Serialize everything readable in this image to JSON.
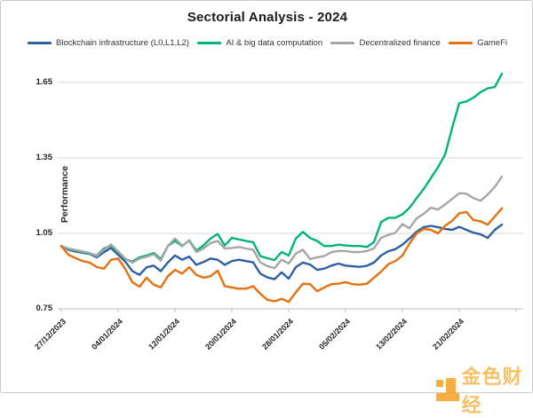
{
  "title": "Sectorial Analysis - 2024",
  "legend": {
    "items": [
      {
        "label": "Blockchain infrastructure (L0,L1,L2)",
        "color": "#2e5fa3"
      },
      {
        "label": "AI & big data computation",
        "color": "#00b377"
      },
      {
        "label": "Decentralized finance",
        "color": "#a6a6a6"
      },
      {
        "label": "GameFi",
        "color": "#e6700e"
      }
    ]
  },
  "y_axis": {
    "label": "Performance"
  },
  "watermark": {
    "text": "金色财经",
    "color": "#f6b64b",
    "logo_color": "#f59f22"
  },
  "chart_data": {
    "type": "line",
    "title": "Sectorial Analysis - 2024",
    "xlabel": "",
    "ylabel": "Performance",
    "ylim": [
      0.75,
      1.65
    ],
    "y_ticks": [
      1.65,
      1.35,
      1.05,
      0.75
    ],
    "x_tick_labels": [
      "27/12/2023",
      "04/01/2024",
      "12/01/2024",
      "20/01/2024",
      "28/01/2024",
      "05/02/2024",
      "13/02/2024",
      "21/02/2024"
    ],
    "x_frequency": "daily, 8 days between labelled ticks",
    "n_points": 63,
    "grid": "horizontal",
    "legend_position": "top",
    "series": [
      {
        "name": "Blockchain infrastructure (L0,L1,L2)",
        "color": "#2e5fa3",
        "values": [
          1.0,
          0.985,
          0.978,
          0.973,
          0.968,
          0.955,
          0.975,
          0.992,
          0.965,
          0.938,
          0.9,
          0.885,
          0.915,
          0.922,
          0.9,
          0.935,
          0.962,
          0.945,
          0.958,
          0.925,
          0.936,
          0.95,
          0.945,
          0.925,
          0.94,
          0.945,
          0.94,
          0.935,
          0.89,
          0.875,
          0.868,
          0.895,
          0.87,
          0.916,
          0.934,
          0.926,
          0.905,
          0.91,
          0.922,
          0.93,
          0.922,
          0.919,
          0.917,
          0.921,
          0.934,
          0.962,
          0.979,
          0.987,
          1.005,
          1.03,
          1.057,
          1.075,
          1.08,
          1.075,
          1.068,
          1.064,
          1.076,
          1.064,
          1.053,
          1.046,
          1.032,
          1.064,
          1.085
        ]
      },
      {
        "name": "AI & big data computation",
        "color": "#00b377",
        "values": [
          1.0,
          0.988,
          0.982,
          0.976,
          0.97,
          0.962,
          0.99,
          1.002,
          0.975,
          0.948,
          0.938,
          0.955,
          0.962,
          0.972,
          0.948,
          1.0,
          1.02,
          1.0,
          1.022,
          0.982,
          1.002,
          1.03,
          1.048,
          1.002,
          1.032,
          1.026,
          1.02,
          1.015,
          0.96,
          0.951,
          0.944,
          0.976,
          0.962,
          1.03,
          1.056,
          1.032,
          1.02,
          1.0,
          1.0,
          1.005,
          1.002,
          1.0,
          1.0,
          0.996,
          1.015,
          1.095,
          1.112,
          1.112,
          1.126,
          1.152,
          1.19,
          1.227,
          1.27,
          1.313,
          1.363,
          1.47,
          1.568,
          1.575,
          1.59,
          1.612,
          1.627,
          1.632,
          1.685
        ]
      },
      {
        "name": "Decentralized finance",
        "color": "#a6a6a6",
        "values": [
          1.0,
          0.99,
          0.984,
          0.978,
          0.972,
          0.96,
          0.985,
          1.006,
          0.978,
          0.95,
          0.934,
          0.95,
          0.957,
          0.967,
          0.942,
          1.0,
          1.03,
          1.002,
          1.02,
          0.976,
          0.99,
          1.012,
          1.02,
          0.99,
          0.992,
          0.996,
          0.99,
          0.985,
          0.935,
          0.92,
          0.912,
          0.945,
          0.93,
          0.97,
          0.985,
          0.948,
          0.955,
          0.96,
          0.975,
          0.98,
          0.98,
          0.976,
          0.976,
          0.98,
          0.99,
          1.032,
          1.044,
          1.052,
          1.087,
          1.07,
          1.11,
          1.128,
          1.152,
          1.145,
          1.165,
          1.187,
          1.21,
          1.208,
          1.19,
          1.18,
          1.205,
          1.235,
          1.276
        ]
      },
      {
        "name": "GameFi",
        "color": "#e6700e",
        "values": [
          1.0,
          0.965,
          0.952,
          0.94,
          0.934,
          0.916,
          0.91,
          0.945,
          0.95,
          0.908,
          0.856,
          0.838,
          0.874,
          0.846,
          0.835,
          0.88,
          0.905,
          0.89,
          0.916,
          0.885,
          0.874,
          0.88,
          0.902,
          0.84,
          0.835,
          0.83,
          0.83,
          0.84,
          0.81,
          0.786,
          0.78,
          0.79,
          0.778,
          0.816,
          0.85,
          0.848,
          0.82,
          0.835,
          0.848,
          0.85,
          0.856,
          0.848,
          0.846,
          0.85,
          0.874,
          0.898,
          0.927,
          0.94,
          0.962,
          1.01,
          1.05,
          1.068,
          1.064,
          1.05,
          1.08,
          1.1,
          1.13,
          1.135,
          1.103,
          1.098,
          1.085,
          1.117,
          1.15
        ]
      }
    ]
  }
}
